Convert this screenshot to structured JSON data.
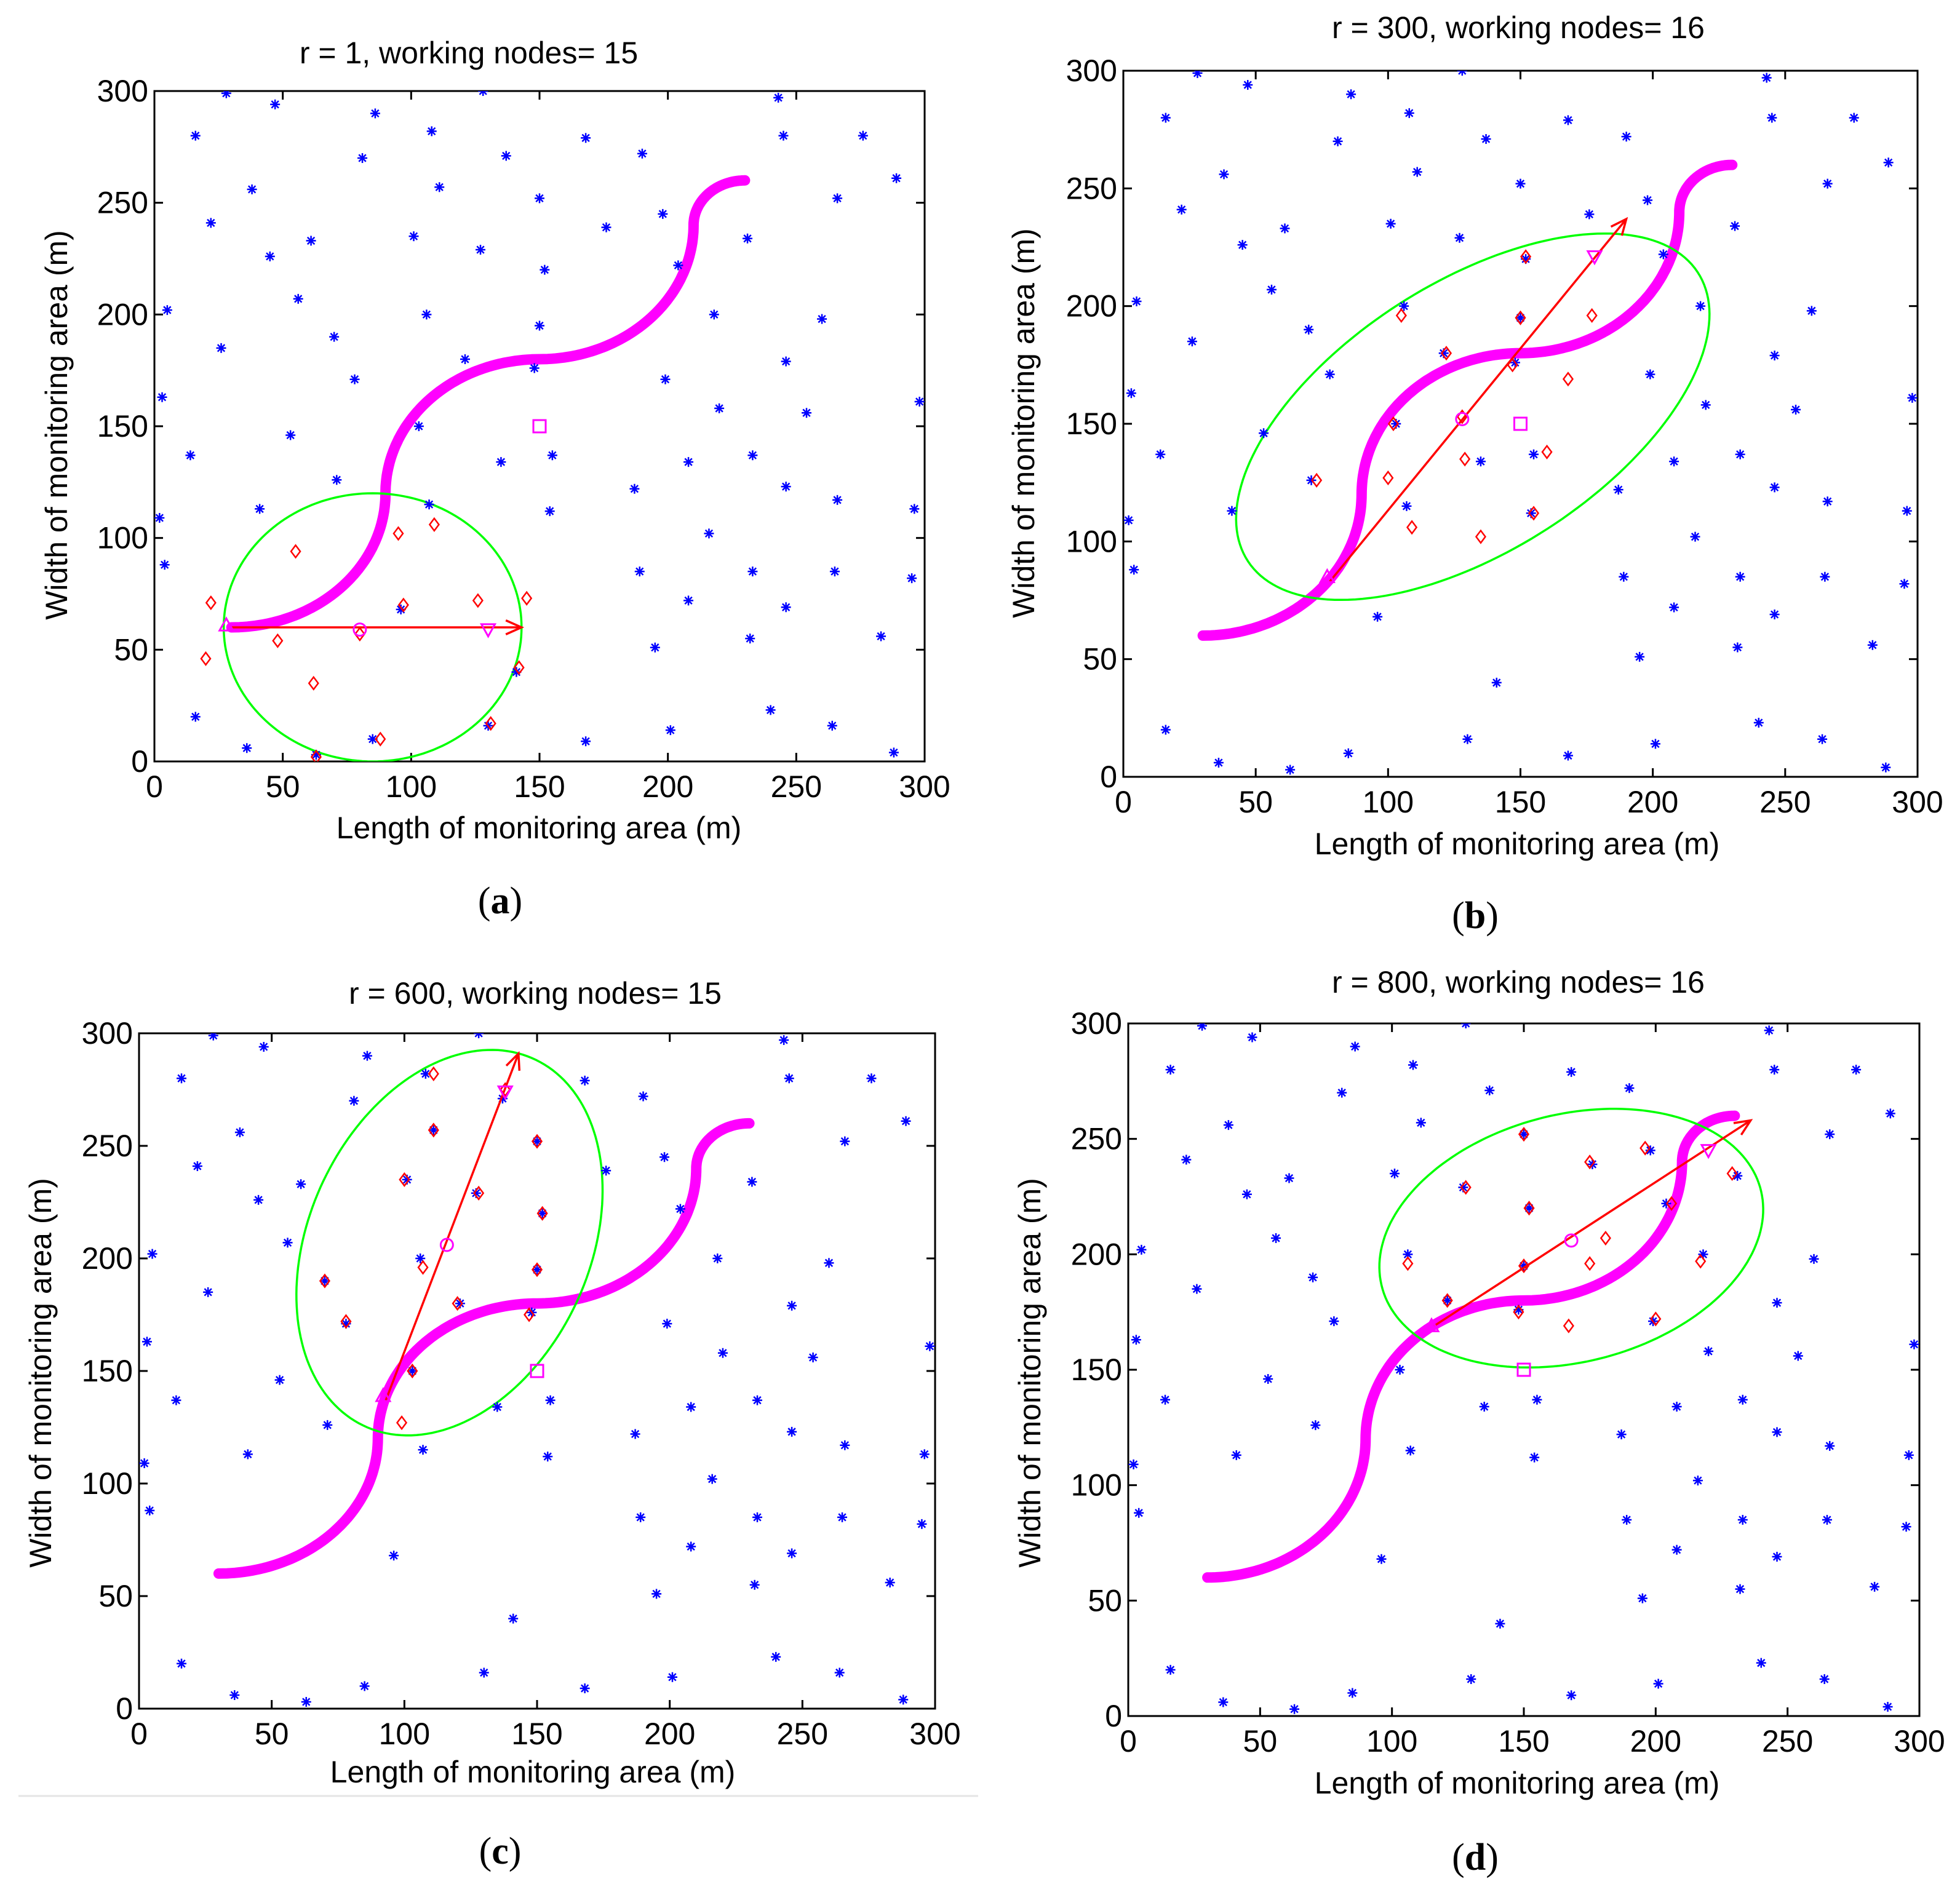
{
  "chart_data": [
    {
      "type": "scatter",
      "title": "r = 1, working nodes= 15",
      "caption_letter": "a",
      "xlabel": "Length of monitoring area (m)",
      "ylabel": "Width of monitoring area (m)",
      "xlim": [
        0,
        300
      ],
      "ylim": [
        0,
        300
      ],
      "xticks": [
        0,
        50,
        100,
        150,
        200,
        250,
        300
      ],
      "yticks": [
        0,
        50,
        100,
        150,
        200,
        250,
        300
      ],
      "ellipse": {
        "cx": 85,
        "cy": 60,
        "semi_major": 58,
        "semi_minor": 60,
        "angle_deg": 0
      },
      "arrow": {
        "from": [
          30,
          60
        ],
        "to": [
          143,
          60
        ]
      },
      "start_marker": [
        28,
        61
      ],
      "end_marker": [
        130,
        59
      ],
      "center_marker": [
        80,
        59
      ],
      "square_marker": [
        150,
        150
      ],
      "working_nodes": [
        [
          22,
          71
        ],
        [
          20,
          46
        ],
        [
          55,
          94
        ],
        [
          48,
          54
        ],
        [
          62,
          35
        ],
        [
          63,
          2
        ],
        [
          97,
          70
        ],
        [
          95,
          102
        ],
        [
          109,
          106
        ],
        [
          88,
          10
        ],
        [
          126,
          72
        ],
        [
          131,
          17
        ],
        [
          142,
          42
        ],
        [
          145,
          73
        ],
        [
          80,
          57
        ]
      ]
    },
    {
      "type": "scatter",
      "title": "r = 300, working nodes= 16",
      "caption_letter": "b",
      "xlabel": "Length of monitoring area (m)",
      "ylabel": "Width of monitoring area (m)",
      "xlim": [
        0,
        300
      ],
      "ylim": [
        0,
        300
      ],
      "xticks": [
        0,
        50,
        100,
        150,
        200,
        250,
        300
      ],
      "yticks": [
        0,
        50,
        100,
        150,
        200,
        250,
        300
      ],
      "ellipse": {
        "cx": 132,
        "cy": 153,
        "semi_major": 105,
        "semi_minor": 55,
        "angle_deg": 38
      },
      "arrow": {
        "from": [
          78,
          83
        ],
        "to": [
          190,
          237
        ]
      },
      "start_marker": [
        77,
        85
      ],
      "end_marker": [
        178,
        221
      ],
      "center_marker": [
        128,
        152
      ],
      "square_marker": [
        150,
        150
      ],
      "working_nodes": [
        [
          73,
          126
        ],
        [
          102,
          150
        ],
        [
          105,
          196
        ],
        [
          100,
          127
        ],
        [
          109,
          106
        ],
        [
          122,
          180
        ],
        [
          129,
          135
        ],
        [
          135,
          102
        ],
        [
          150,
          195
        ],
        [
          152,
          221
        ],
        [
          160,
          138
        ],
        [
          155,
          112
        ],
        [
          168,
          169
        ],
        [
          177,
          196
        ],
        [
          147,
          175
        ],
        [
          128,
          153
        ]
      ]
    },
    {
      "type": "scatter",
      "title": "r = 600, working nodes= 15",
      "caption_letter": "c",
      "xlabel": "Length of monitoring area (m)",
      "ylabel": "Width of monitoring area (m)",
      "xlim": [
        0,
        300
      ],
      "ylim": [
        0,
        300
      ],
      "xticks": [
        0,
        50,
        100,
        150,
        200,
        250,
        300
      ],
      "yticks": [
        0,
        50,
        100,
        150,
        200,
        250,
        300
      ],
      "ellipse": {
        "cx": 117,
        "cy": 207,
        "semi_major": 88,
        "semi_minor": 54,
        "angle_deg": 73
      },
      "arrow": {
        "from": [
          93,
          137
        ],
        "to": [
          143,
          291
        ]
      },
      "start_marker": [
        92,
        139
      ],
      "end_marker": [
        138,
        274
      ],
      "center_marker": [
        116,
        206
      ],
      "square_marker": [
        150,
        150
      ],
      "working_nodes": [
        [
          70,
          190
        ],
        [
          78,
          172
        ],
        [
          100,
          235
        ],
        [
          103,
          150
        ],
        [
          99,
          127
        ],
        [
          107,
          196
        ],
        [
          111,
          257
        ],
        [
          111,
          282
        ],
        [
          120,
          180
        ],
        [
          128,
          229
        ],
        [
          138,
          275
        ],
        [
          150,
          252
        ],
        [
          152,
          220
        ],
        [
          150,
          195
        ],
        [
          147,
          175
        ]
      ]
    },
    {
      "type": "scatter",
      "title": "r = 800, working nodes= 16",
      "caption_letter": "d",
      "xlabel": "Length of monitoring area (m)",
      "ylabel": "Width of monitoring area (m)",
      "xlim": [
        0,
        300
      ],
      "ylim": [
        0,
        300
      ],
      "xticks": [
        0,
        50,
        100,
        150,
        200,
        250,
        300
      ],
      "yticks": [
        0,
        50,
        100,
        150,
        200,
        250,
        300
      ],
      "ellipse": {
        "cx": 168,
        "cy": 207,
        "semi_major": 75,
        "semi_minor": 53,
        "angle_deg": 20
      },
      "arrow": {
        "from": [
          116,
          169
        ],
        "to": [
          236,
          258
        ]
      },
      "start_marker": [
        115,
        169
      ],
      "end_marker": [
        220,
        245
      ],
      "center_marker": [
        168,
        206
      ],
      "square_marker": [
        150,
        150
      ],
      "working_nodes": [
        [
          106,
          196
        ],
        [
          121,
          180
        ],
        [
          128,
          229
        ],
        [
          148,
          175
        ],
        [
          150,
          195
        ],
        [
          150,
          252
        ],
        [
          152,
          220
        ],
        [
          167,
          169
        ],
        [
          175,
          196
        ],
        [
          175,
          240
        ],
        [
          181,
          207
        ],
        [
          196,
          246
        ],
        [
          200,
          172
        ],
        [
          206,
          222
        ],
        [
          217,
          197
        ],
        [
          229,
          235
        ]
      ]
    }
  ],
  "shared": {
    "other_nodes": [
      [
        2,
        109
      ],
      [
        3,
        163
      ],
      [
        4,
        88
      ],
      [
        5,
        202
      ],
      [
        14,
        137
      ],
      [
        16,
        20
      ],
      [
        16,
        280
      ],
      [
        22,
        241
      ],
      [
        26,
        185
      ],
      [
        28,
        299
      ],
      [
        36,
        6
      ],
      [
        41,
        113
      ],
      [
        38,
        256
      ],
      [
        45,
        226
      ],
      [
        47,
        294
      ],
      [
        53,
        146
      ],
      [
        56,
        207
      ],
      [
        61,
        233
      ],
      [
        63,
        3
      ],
      [
        70,
        190
      ],
      [
        71,
        126
      ],
      [
        78,
        171
      ],
      [
        81,
        270
      ],
      [
        85,
        10
      ],
      [
        86,
        290
      ],
      [
        96,
        68
      ],
      [
        101,
        235
      ],
      [
        103,
        150
      ],
      [
        106,
        200
      ],
      [
        107,
        115
      ],
      [
        108,
        282
      ],
      [
        111,
        257
      ],
      [
        121,
        180
      ],
      [
        127,
        229
      ],
      [
        128,
        300
      ],
      [
        130,
        16
      ],
      [
        135,
        134
      ],
      [
        137,
        271
      ],
      [
        141,
        40
      ],
      [
        148,
        176
      ],
      [
        150,
        252
      ],
      [
        150,
        195
      ],
      [
        152,
        220
      ],
      [
        155,
        137
      ],
      [
        154,
        112
      ],
      [
        168,
        9
      ],
      [
        168,
        279
      ],
      [
        176,
        239
      ],
      [
        187,
        122
      ],
      [
        189,
        85
      ],
      [
        190,
        272
      ],
      [
        195,
        51
      ],
      [
        198,
        245
      ],
      [
        199,
        171
      ],
      [
        201,
        14
      ],
      [
        204,
        222
      ],
      [
        208,
        134
      ],
      [
        208,
        72
      ],
      [
        216,
        102
      ],
      [
        218,
        200
      ],
      [
        220,
        158
      ],
      [
        231,
        234
      ],
      [
        232,
        55
      ],
      [
        233,
        85
      ],
      [
        233,
        137
      ],
      [
        240,
        23
      ],
      [
        243,
        297
      ],
      [
        245,
        280
      ],
      [
        246,
        123
      ],
      [
        246,
        179
      ],
      [
        246,
        69
      ],
      [
        254,
        156
      ],
      [
        260,
        198
      ],
      [
        264,
        16
      ],
      [
        265,
        85
      ],
      [
        266,
        117
      ],
      [
        266,
        252
      ],
      [
        276,
        280
      ],
      [
        283,
        56
      ],
      [
        288,
        4
      ],
      [
        289,
        261
      ],
      [
        295,
        82
      ],
      [
        296,
        113
      ],
      [
        298,
        161
      ]
    ],
    "path": {
      "start": [
        30,
        60
      ],
      "segments": [
        {
          "center": [
            30,
            120
          ],
          "radius": 60,
          "from_deg": -90,
          "to_deg": 0
        },
        {
          "center": [
            150,
            120
          ],
          "radius": 60,
          "from_deg": 180,
          "to_deg": 90
        },
        {
          "center": [
            150,
            240
          ],
          "radius": 60,
          "from_deg": -90,
          "to_deg": 0
        },
        {
          "center": [
            230,
            240
          ],
          "radius": 20,
          "from_deg": 180,
          "to_deg": 90
        }
      ]
    },
    "colors": {
      "nodes": "#0000ff",
      "working_nodes": "#ff0000",
      "path": "#ff00ff",
      "ellipse": "#00ff00",
      "arrow": "#ff0000",
      "markers": "#ff00ff"
    }
  }
}
